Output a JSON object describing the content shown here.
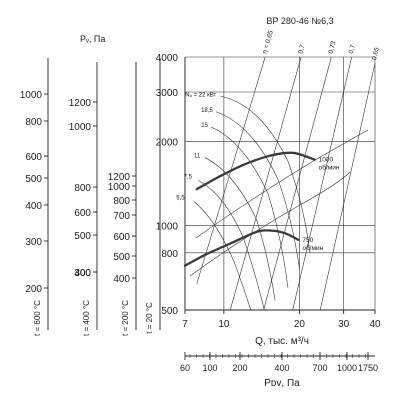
{
  "title": "ВР 280-46 №6,3",
  "chart_data": {
    "type": "line",
    "title": "ВР 280-46 №6,3",
    "xlabel": "Q, тыс. м³/ч",
    "ylabel": "",
    "x_scale": "log",
    "y_scale": "log",
    "xlim": [
      7,
      40
    ],
    "ylim": [
      500,
      4000
    ],
    "x_ticks": [
      "7",
      "10",
      "20",
      "30",
      "40"
    ],
    "y_ticks_main": [
      "4000",
      "3000",
      "2000",
      "1000",
      "800",
      "500"
    ],
    "temp_scales": [
      {
        "label": "t = 600 °C",
        "ticks": [
          "1000",
          "800",
          "600",
          "500",
          "400",
          "300",
          "200"
        ]
      },
      {
        "label": "t = 400 °C",
        "ticks": [
          "1200",
          "1000",
          "800",
          "600",
          "500",
          "400",
          "300"
        ]
      },
      {
        "label": "t = 200 °C",
        "ticks": [
          "1200",
          "1000",
          "800",
          "700",
          "600",
          "500",
          "400"
        ]
      },
      {
        "label": "t = 20 °C",
        "ticks": []
      }
    ],
    "pressure_header": "Pᵥ, Па",
    "pdv_axis": {
      "label": "Pᴅᴠ, Па",
      "ticks": [
        "60",
        "100",
        "200",
        "400",
        "700",
        "1000",
        "1750"
      ]
    },
    "efficiency_labels": [
      "η = 0,65",
      "0,7",
      "0,73",
      "0,7",
      "0,65"
    ],
    "power_labels": [
      "Nᵤ = 22 кВт",
      "18,5",
      "15",
      "11",
      "7,5",
      "5,5"
    ],
    "series": [
      {
        "name": "1000 об/мин",
        "x": [
          7.8,
          9.5,
          12,
          15,
          18,
          20,
          23
        ],
        "y": [
          1350,
          1490,
          1650,
          1770,
          1820,
          1800,
          1720
        ]
      },
      {
        "name": "750 об/мин",
        "x": [
          7,
          8.5,
          10.5,
          13.5,
          15.5,
          17.5,
          19.8
        ],
        "y": [
          720,
          790,
          860,
          950,
          960,
          940,
          890
        ]
      }
    ],
    "grid": true
  }
}
